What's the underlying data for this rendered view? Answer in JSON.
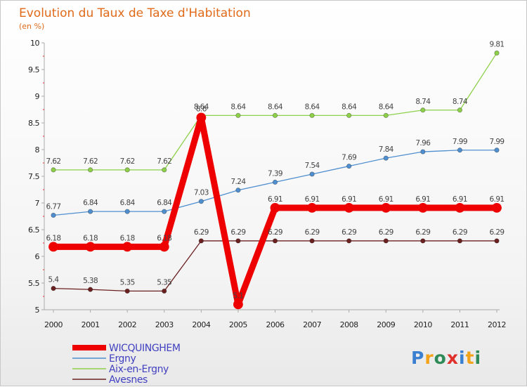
{
  "title": "Evolution du Taux de Taxe d'Habitation",
  "subtitle": "(en %)",
  "brand": {
    "letters": [
      "P",
      "r",
      "o",
      "x",
      "i",
      "t",
      "i"
    ],
    "colors": [
      "#3a7fd0",
      "#f2a31a",
      "#2e8b57",
      "#e0302a",
      "#3a7fd0",
      "#f2a31a",
      "#2e8b57"
    ]
  },
  "chart_data": {
    "type": "line",
    "title": "Evolution du Taux de Taxe d'Habitation",
    "subtitle": "(en %)",
    "xlabel": "",
    "ylabel": "",
    "ylim": [
      5,
      10
    ],
    "yticks": [
      "5",
      "5.5",
      "6",
      "6.5",
      "7",
      "7.5",
      "8",
      "8.5",
      "9",
      "9.5",
      "10"
    ],
    "x": [
      "2000",
      "2001",
      "2002",
      "2003",
      "2004",
      "2005",
      "2006",
      "2007",
      "2008",
      "2009",
      "2010",
      "2011",
      "2012"
    ],
    "grid": false,
    "legend_position": "bottom-left",
    "series": [
      {
        "name": "WICQUINGHEM",
        "color": "#ee0000",
        "emphasis": true,
        "values": [
          6.18,
          6.18,
          6.18,
          6.18,
          8.6,
          5.1,
          6.91,
          6.91,
          6.91,
          6.91,
          6.91,
          6.91,
          6.91
        ],
        "labels": [
          "6.18",
          "6.18",
          "6.18",
          "6.18",
          "8.6",
          "5.1",
          "6.91",
          "6.91",
          "6.91",
          "6.91",
          "6.91",
          "6.91",
          "6.91"
        ]
      },
      {
        "name": "Ergny",
        "color": "#4f8fcf",
        "emphasis": false,
        "values": [
          6.77,
          6.84,
          6.84,
          6.84,
          7.03,
          7.24,
          7.39,
          7.54,
          7.69,
          7.84,
          7.96,
          7.99,
          7.99
        ],
        "labels": [
          "6.77",
          "6.84",
          "6.84",
          "6.84",
          "7.03",
          "7.24",
          "7.39",
          "7.54",
          "7.69",
          "7.84",
          "7.96",
          "7.99",
          "7.99"
        ]
      },
      {
        "name": "Aix-en-Ergny",
        "color": "#8ed04a",
        "emphasis": false,
        "values": [
          7.62,
          7.62,
          7.62,
          7.62,
          8.64,
          8.64,
          8.64,
          8.64,
          8.64,
          8.64,
          8.74,
          8.74,
          9.81
        ],
        "labels": [
          "7.62",
          "7.62",
          "7.62",
          "7.62",
          "8.64",
          "8.64",
          "8.64",
          "8.64",
          "8.64",
          "8.64",
          "8.74",
          "8.74",
          "9.81"
        ]
      },
      {
        "name": "Avesnes",
        "color": "#6b2020",
        "emphasis": false,
        "values": [
          5.4,
          5.38,
          5.35,
          5.35,
          6.29,
          6.29,
          6.29,
          6.29,
          6.29,
          6.29,
          6.29,
          6.29,
          6.29
        ],
        "labels": [
          "5.4",
          "5.38",
          "5.35",
          "5.35",
          "6.29",
          "6.29",
          "6.29",
          "6.29",
          "6.29",
          "6.29",
          "6.29",
          "6.29",
          "6.29"
        ]
      }
    ]
  }
}
